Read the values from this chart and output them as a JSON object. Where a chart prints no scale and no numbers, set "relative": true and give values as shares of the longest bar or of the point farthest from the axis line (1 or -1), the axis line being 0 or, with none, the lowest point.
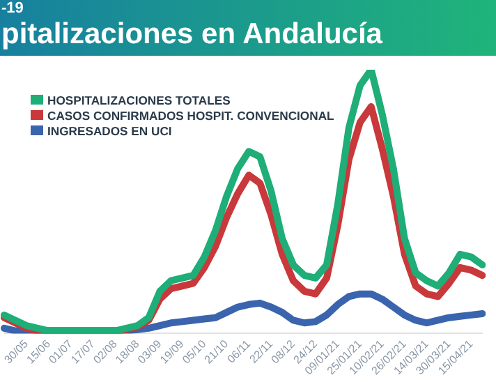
{
  "chart_data": {
    "type": "line",
    "subtitle": "-19",
    "title": "pitalizaciones en Andalucía",
    "relative": true,
    "grid": false,
    "legend": "top left",
    "marker": "none",
    "line_style": "solid",
    "categories": [
      null,
      null,
      "30/05",
      null,
      "15/06",
      null,
      "01/07",
      null,
      "17/07",
      null,
      "02/08",
      null,
      "18/08",
      null,
      "03/09",
      null,
      "19/09",
      null,
      "05/10",
      null,
      "21/10",
      null,
      "06/11",
      null,
      "22/11",
      null,
      "08/12",
      null,
      "24/12",
      null,
      "09/01/21",
      null,
      "25/01/21",
      null,
      "10/02/21",
      null,
      "26/02/21",
      null,
      "14/03/21",
      null,
      "30/03/21",
      null,
      "15/04/21",
      null
    ],
    "series": [
      {
        "name": "HOSPITALIZACIONES TOTALES",
        "color": "#1fad78",
        "values": [
          0.07,
          0.05,
          0.03,
          0.02,
          0.01,
          0.01,
          0.01,
          0.01,
          0.01,
          0.01,
          0.01,
          0.02,
          0.03,
          0.06,
          0.16,
          0.2,
          0.21,
          0.22,
          0.29,
          0.39,
          0.52,
          0.625,
          0.69,
          0.67,
          0.54,
          0.36,
          0.26,
          0.22,
          0.21,
          0.26,
          0.49,
          0.78,
          0.94,
          1,
          0.83,
          0.625,
          0.36,
          0.23,
          0.2,
          0.18,
          0.23,
          0.3,
          0.29,
          0.26
        ]
      },
      {
        "name": "CASOS CONFIRMADOS HOSPIT. CONVENCIONAL",
        "color": "#c9383a",
        "values": [
          0.06,
          0.04,
          0.02,
          0.01,
          0.01,
          0.01,
          0.01,
          0.01,
          0.01,
          0.01,
          0.01,
          0.015,
          0.025,
          0.05,
          0.13,
          0.17,
          0.18,
          0.19,
          0.25,
          0.33,
          0.44,
          0.53,
          0.6,
          0.57,
          0.45,
          0.3,
          0.2,
          0.16,
          0.15,
          0.21,
          0.41,
          0.66,
          0.8,
          0.86,
          0.7,
          0.52,
          0.3,
          0.18,
          0.15,
          0.14,
          0.19,
          0.25,
          0.24,
          0.22
        ]
      },
      {
        "name": "INGRESADOS EN UCI",
        "color": "#3a64ad",
        "values": [
          0.02,
          0.01,
          0.01,
          0.01,
          0.01,
          0.01,
          0.01,
          0.01,
          0.01,
          0.01,
          0.01,
          0.01,
          0.015,
          0.02,
          0.03,
          0.04,
          0.045,
          0.05,
          0.055,
          0.06,
          0.08,
          0.1,
          0.11,
          0.115,
          0.1,
          0.08,
          0.05,
          0.04,
          0.045,
          0.07,
          0.11,
          0.14,
          0.15,
          0.15,
          0.13,
          0.1,
          0.07,
          0.05,
          0.04,
          0.05,
          0.06,
          0.065,
          0.07,
          0.075
        ]
      }
    ]
  }
}
